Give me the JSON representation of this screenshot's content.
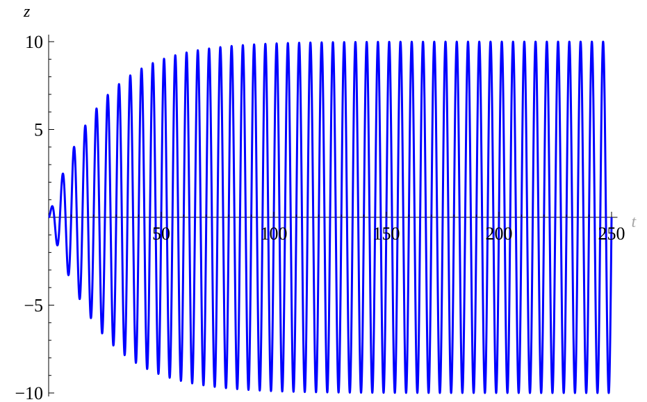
{
  "chart_data": {
    "type": "line",
    "title": "",
    "xlabel": "t",
    "ylabel": "z",
    "xlim": [
      0,
      252
    ],
    "ylim": [
      -10.2,
      10.4
    ],
    "x_ticks": [
      50,
      100,
      150,
      200,
      250
    ],
    "x_tick_labels": [
      "50",
      "100",
      "150",
      "200",
      "250"
    ],
    "y_ticks": [
      -10,
      -5,
      5,
      10
    ],
    "y_tick_labels": [
      "−10",
      "−5",
      "5",
      "10"
    ],
    "grid": false,
    "line_color": "#0000ff",
    "series": [
      {
        "function": "z(t) = 10 * (1 - exp(-t/22)) * sin(2*pi*t/5)",
        "amplitude": 10,
        "period": 5,
        "envelope_time_constant": 22,
        "t_range": [
          0,
          250
        ],
        "x": [
          0,
          10,
          20,
          30,
          40,
          50,
          75,
          100,
          150,
          200,
          250
        ],
        "envelope": [
          0,
          3.65,
          5.97,
          7.44,
          8.38,
          8.97,
          9.67,
          9.89,
          9.99,
          10.0,
          10.0
        ]
      }
    ]
  }
}
